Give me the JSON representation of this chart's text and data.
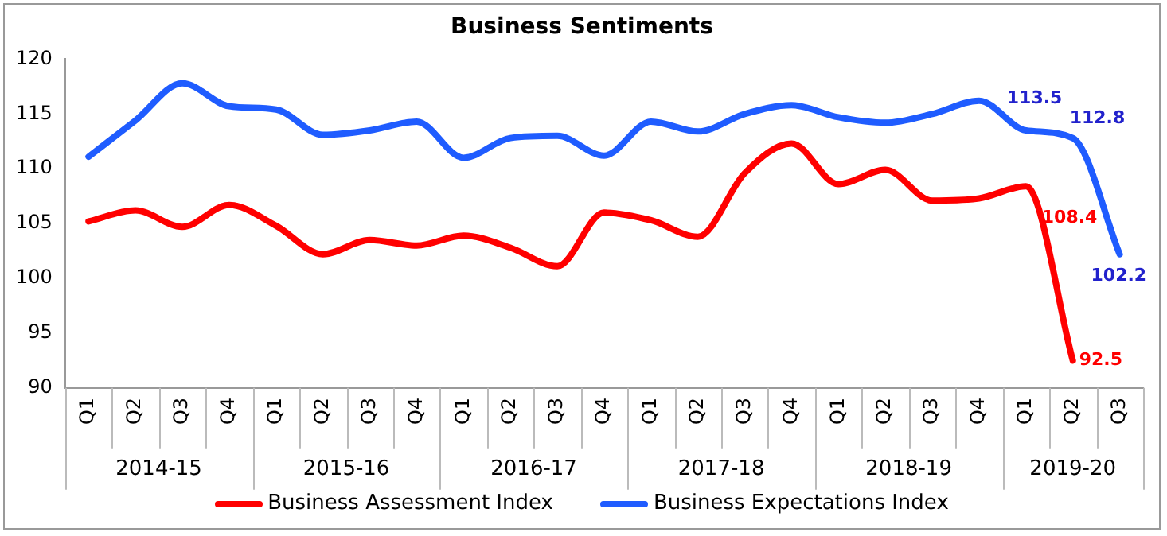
{
  "chart_data": {
    "type": "line",
    "title": "Business Sentiments",
    "categories": [
      "Q1",
      "Q2",
      "Q3",
      "Q4",
      "Q1",
      "Q2",
      "Q3",
      "Q4",
      "Q1",
      "Q2",
      "Q3",
      "Q4",
      "Q1",
      "Q2",
      "Q3",
      "Q4",
      "Q1",
      "Q2",
      "Q3",
      "Q4",
      "Q1",
      "Q2",
      "Q3"
    ],
    "series": [
      {
        "name": "Business Assessment Index",
        "color": "#ff0000",
        "values": [
          105.2,
          106.2,
          104.7,
          106.7,
          104.8,
          102.2,
          103.5,
          103.0,
          103.9,
          102.8,
          101.1,
          106.0,
          105.3,
          103.8,
          109.6,
          112.3,
          108.6,
          109.9,
          107.1,
          107.3,
          108.4,
          92.5,
          null
        ],
        "value_labels": [
          null,
          null,
          null,
          null,
          null,
          null,
          null,
          null,
          null,
          null,
          null,
          null,
          null,
          null,
          null,
          null,
          null,
          null,
          null,
          null,
          "108.4",
          "92.5",
          null
        ]
      },
      {
        "name": "Business Expectations Index",
        "color": "#1f5cff",
        "values": [
          111.1,
          114.4,
          117.8,
          115.7,
          115.4,
          113.1,
          113.5,
          114.3,
          111.0,
          112.8,
          113.0,
          111.2,
          114.3,
          113.4,
          115.0,
          115.8,
          114.7,
          114.2,
          115.0,
          116.2,
          113.5,
          112.8,
          102.2
        ],
        "value_labels": [
          null,
          null,
          null,
          null,
          null,
          null,
          null,
          null,
          null,
          null,
          null,
          null,
          null,
          null,
          null,
          null,
          null,
          null,
          null,
          null,
          "113.5",
          "112.8",
          "102.2"
        ]
      }
    ],
    "annotations": [
      "2014-15",
      "2015-16",
      "2016-17",
      "2017-18",
      "2018-19",
      "2019-20"
    ],
    "ylim": [
      90,
      120
    ],
    "yticks": [
      90,
      95,
      100,
      105,
      110,
      115,
      120
    ],
    "grid": false,
    "legend": "bottom",
    "marker": "none",
    "line_style": "solid"
  }
}
